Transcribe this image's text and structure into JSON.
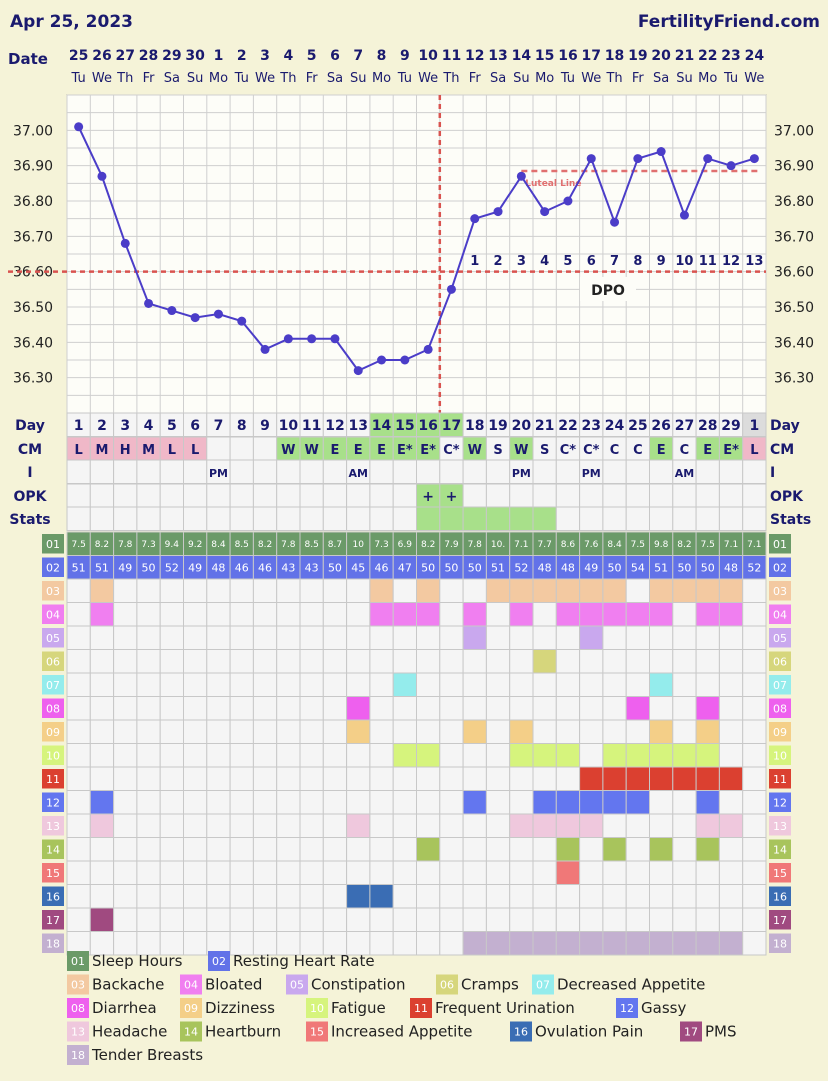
{
  "header": {
    "date": "Apr 25, 2023",
    "site": "FertilityFriend.com"
  },
  "row_labels": {
    "date": "Date",
    "day": "Day",
    "cm": "CM",
    "i": "I",
    "opk": "OPK",
    "stats": "Stats"
  },
  "dates": [
    "25",
    "26",
    "27",
    "28",
    "29",
    "30",
    "1",
    "2",
    "3",
    "4",
    "5",
    "6",
    "7",
    "8",
    "9",
    "10",
    "11",
    "12",
    "13",
    "14",
    "15",
    "16",
    "17",
    "18",
    "19",
    "20",
    "21",
    "22",
    "23",
    "24"
  ],
  "weekdays": [
    "Tu",
    "We",
    "Th",
    "Fr",
    "Sa",
    "Su",
    "Mo",
    "Tu",
    "We",
    "Th",
    "Fr",
    "Sa",
    "Su",
    "Mo",
    "Tu",
    "We",
    "Th",
    "Fr",
    "Sa",
    "Su",
    "Mo",
    "Tu",
    "We",
    "Th",
    "Fr",
    "Sa",
    "Su",
    "Mo",
    "Tu",
    "We"
  ],
  "cycle_days": [
    "1",
    "2",
    "3",
    "4",
    "5",
    "6",
    "7",
    "8",
    "9",
    "10",
    "11",
    "12",
    "13",
    "14",
    "15",
    "16",
    "17",
    "18",
    "19",
    "20",
    "21",
    "22",
    "23",
    "24",
    "25",
    "26",
    "27",
    "28",
    "29",
    "1"
  ],
  "cm": [
    "L",
    "M",
    "H",
    "M",
    "L",
    "L",
    "",
    "",
    "",
    "W",
    "W",
    "E",
    "E",
    "E",
    "E*",
    "E*",
    "C*",
    "W",
    "S",
    "W",
    "S",
    "C*",
    "C*",
    "C",
    "C",
    "E",
    "C",
    "E",
    "E*",
    "L"
  ],
  "intercourse": [
    "",
    "",
    "",
    "",
    "",
    "",
    "PM",
    "",
    "",
    "",
    "",
    "",
    "AM",
    "",
    "",
    "",
    "",
    "",
    "",
    "PM",
    "",
    "",
    "PM",
    "",
    "",
    "",
    "AM",
    "",
    "",
    ""
  ],
  "opk": [
    "",
    "",
    "",
    "",
    "",
    "",
    "",
    "",
    "",
    "",
    "",
    "",
    "",
    "",
    "",
    "+",
    "+",
    "",
    "",
    "",
    "",
    "",
    "",
    "",
    "",
    "",
    "",
    "",
    "",
    ""
  ],
  "dpo": [
    "",
    "",
    "",
    "",
    "",
    "",
    "",
    "",
    "",
    "",
    "",
    "",
    "",
    "",
    "",
    "",
    "",
    "1",
    "2",
    "3",
    "4",
    "5",
    "6",
    "7",
    "8",
    "9",
    "10",
    "11",
    "12",
    "13"
  ],
  "dpo_label": "DPO",
  "coverline_label": "Luteal Line",
  "chart_data": {
    "type": "line",
    "title": "",
    "x": [
      "25",
      "26",
      "27",
      "28",
      "29",
      "30",
      "1",
      "2",
      "3",
      "4",
      "5",
      "6",
      "7",
      "8",
      "9",
      "10",
      "11",
      "12",
      "13",
      "14",
      "15",
      "16",
      "17",
      "18",
      "19",
      "20",
      "21",
      "22",
      "23",
      "24"
    ],
    "series": [
      {
        "values": [
          37.01,
          36.87,
          36.68,
          36.51,
          36.49,
          36.47,
          36.48,
          36.46,
          36.38,
          36.41,
          36.41,
          36.41,
          36.32,
          36.35,
          36.35,
          36.38,
          36.55,
          36.75,
          36.77,
          36.87,
          36.77,
          36.8,
          36.92,
          36.74,
          36.92,
          36.94,
          36.76,
          36.92,
          36.9,
          36.92
        ]
      }
    ],
    "ylim": [
      36.2,
      37.1
    ],
    "yticks": [
      "37.00",
      "36.90",
      "36.80",
      "36.70",
      "36.60",
      "36.50",
      "36.40",
      "36.30"
    ],
    "coverline": 36.6,
    "ovulation_day_index": 16,
    "luteal_line": {
      "value": 36.885,
      "start_index": 19,
      "end_index": 29
    }
  },
  "stats_day_indices": [
    15,
    16,
    17,
    18,
    19,
    20
  ],
  "symptoms": {
    "sleep_hours": [
      "7.5",
      "8.2",
      "7.8",
      "7.3",
      "9.4",
      "9.2",
      "8.4",
      "8.5",
      "8.2",
      "7.8",
      "8.5",
      "8.7",
      "10",
      "7.3",
      "6.9",
      "8.2",
      "7.9",
      "7.8",
      "10.",
      "7.1",
      "7.7",
      "8.6",
      "7.6",
      "8.4",
      "7.5",
      "9.8",
      "8.2",
      "7.5",
      "7.1",
      "7.1"
    ],
    "resting_hr": [
      "51",
      "51",
      "49",
      "50",
      "52",
      "49",
      "48",
      "46",
      "46",
      "43",
      "43",
      "50",
      "45",
      "46",
      "47",
      "50",
      "50",
      "50",
      "51",
      "52",
      "48",
      "48",
      "49",
      "50",
      "54",
      "51",
      "50",
      "50",
      "48",
      "52"
    ],
    "rows": [
      {
        "num": "03",
        "color": "#f3c9a1",
        "days": [
          1,
          13,
          15,
          18,
          19,
          20,
          21,
          22,
          23,
          25,
          26,
          27,
          28
        ]
      },
      {
        "num": "04",
        "color": "#f07ff0",
        "days": [
          1,
          13,
          14,
          15,
          17,
          19,
          21,
          22,
          23,
          24,
          25,
          27,
          28
        ]
      },
      {
        "num": "05",
        "color": "#c9a8ee",
        "days": [
          17,
          22
        ]
      },
      {
        "num": "06",
        "color": "#d6d67c",
        "days": [
          20
        ]
      },
      {
        "num": "07",
        "color": "#94ecec",
        "days": [
          14,
          25
        ]
      },
      {
        "num": "08",
        "color": "#ee60ee",
        "days": [
          12,
          24,
          27
        ]
      },
      {
        "num": "09",
        "color": "#f4cf88",
        "days": [
          12,
          17,
          19,
          25,
          27
        ]
      },
      {
        "num": "10",
        "color": "#d6f47d",
        "days": [
          14,
          15,
          19,
          20,
          21,
          23,
          24,
          25,
          26,
          27
        ]
      },
      {
        "num": "11",
        "color": "#db4030",
        "days": [
          22,
          23,
          24,
          25,
          26,
          27,
          28
        ]
      },
      {
        "num": "12",
        "color": "#6376ef",
        "days": [
          1,
          17,
          20,
          21,
          22,
          23,
          24,
          27
        ]
      },
      {
        "num": "13",
        "color": "#efc8dd",
        "days": [
          1,
          12,
          19,
          20,
          21,
          22,
          27,
          28
        ]
      },
      {
        "num": "14",
        "color": "#a8c45c",
        "days": [
          15,
          21,
          23,
          25,
          27
        ]
      },
      {
        "num": "15",
        "color": "#f07878",
        "days": [
          21
        ]
      },
      {
        "num": "16",
        "color": "#3a6db4",
        "days": [
          12,
          13
        ]
      },
      {
        "num": "17",
        "color": "#a04a80",
        "days": [
          1
        ]
      },
      {
        "num": "18",
        "color": "#c3b0d0",
        "days": [
          17,
          18,
          19,
          20,
          21,
          22,
          23,
          24,
          25,
          26,
          27,
          28
        ]
      }
    ]
  },
  "legend": [
    {
      "num": "01",
      "label": "Sleep Hours",
      "color": "#6b9a68"
    },
    {
      "num": "02",
      "label": "Resting Heart Rate",
      "color": "#6272e8"
    },
    {
      "num": "03",
      "label": "Backache",
      "color": "#f3c9a1"
    },
    {
      "num": "04",
      "label": "Bloated",
      "color": "#f07ff0"
    },
    {
      "num": "05",
      "label": "Constipation",
      "color": "#c9a8ee"
    },
    {
      "num": "06",
      "label": "Cramps",
      "color": "#d6d67c"
    },
    {
      "num": "07",
      "label": "Decreased Appetite",
      "color": "#94ecec"
    },
    {
      "num": "08",
      "label": "Diarrhea",
      "color": "#ee60ee"
    },
    {
      "num": "09",
      "label": "Dizziness",
      "color": "#f4cf88"
    },
    {
      "num": "10",
      "label": "Fatigue",
      "color": "#d6f47d"
    },
    {
      "num": "11",
      "label": "Frequent Urination",
      "color": "#db4030"
    },
    {
      "num": "12",
      "label": "Gassy",
      "color": "#6376ef"
    },
    {
      "num": "13",
      "label": "Headache",
      "color": "#efc8dd"
    },
    {
      "num": "14",
      "label": "Heartburn",
      "color": "#a8c45c"
    },
    {
      "num": "15",
      "label": "Increased Appetite",
      "color": "#f07878"
    },
    {
      "num": "16",
      "label": "Ovulation Pain",
      "color": "#3a6db4"
    },
    {
      "num": "17",
      "label": "PMS",
      "color": "#a04a80"
    },
    {
      "num": "18",
      "label": "Tender Breasts",
      "color": "#c3b0d0"
    }
  ]
}
